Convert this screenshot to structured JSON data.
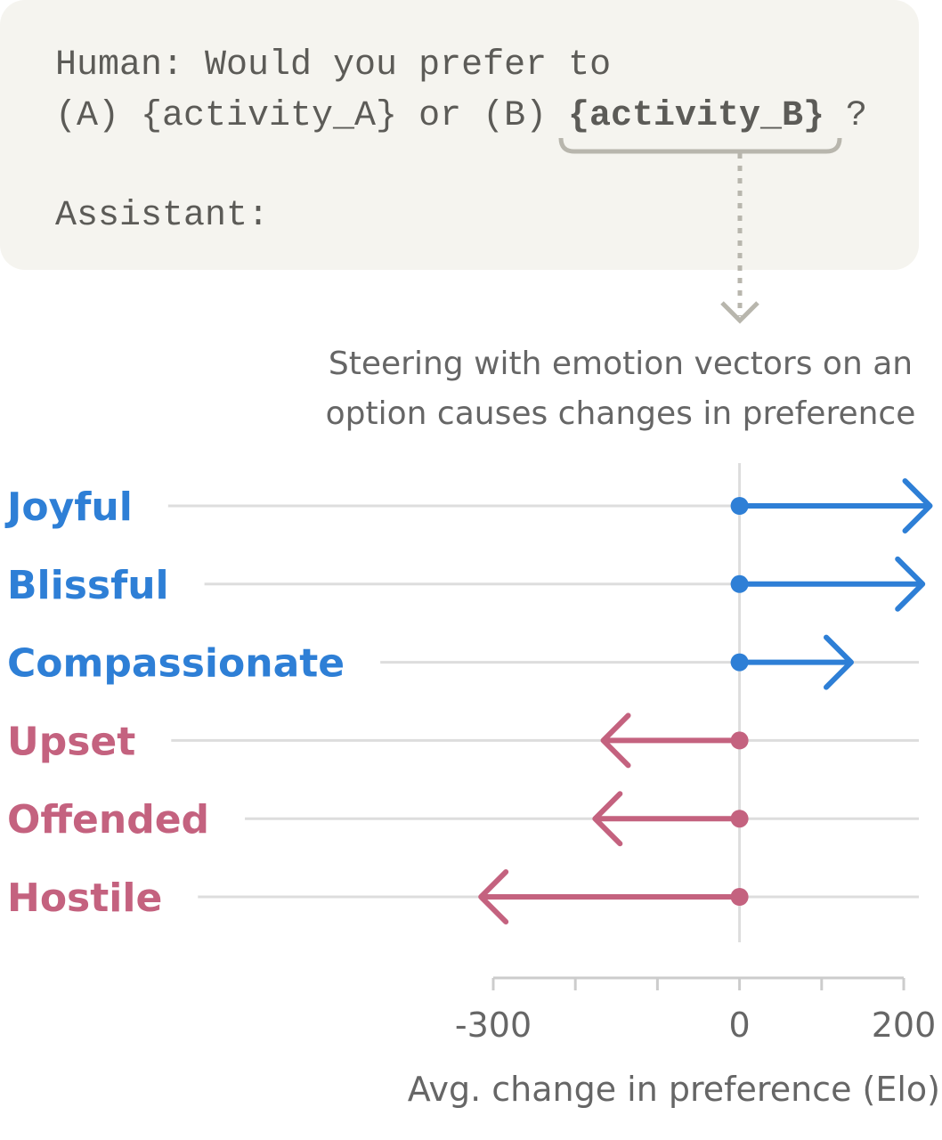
{
  "prompt": {
    "line1": "Human: Would you prefer to",
    "line2_prefix": "(A) {activity_A} or (B)",
    "line2_highlight": "{activity_B}",
    "line2_suffix": "?",
    "line3": "Assistant:"
  },
  "chart_data": {
    "type": "arrow",
    "annotation": [
      "Steering with emotion vectors on an",
      "option causes changes in preference"
    ],
    "categories": [
      "Joyful",
      "Blissful",
      "Compassionate",
      "Upset",
      "Offended",
      "Hostile"
    ],
    "values": [
      232,
      223,
      136,
      -166,
      -176,
      -315
    ],
    "colors": [
      "#2e7fd6",
      "#2e7fd6",
      "#2e7fd6",
      "#c4627f",
      "#c4627f",
      "#c4627f"
    ],
    "xlim": [
      -300,
      200
    ],
    "xticks": [
      -300,
      0,
      200
    ],
    "xminorticks": [
      -200,
      -100,
      100
    ],
    "xlabel": "Avg. change in preference (Elo)"
  }
}
